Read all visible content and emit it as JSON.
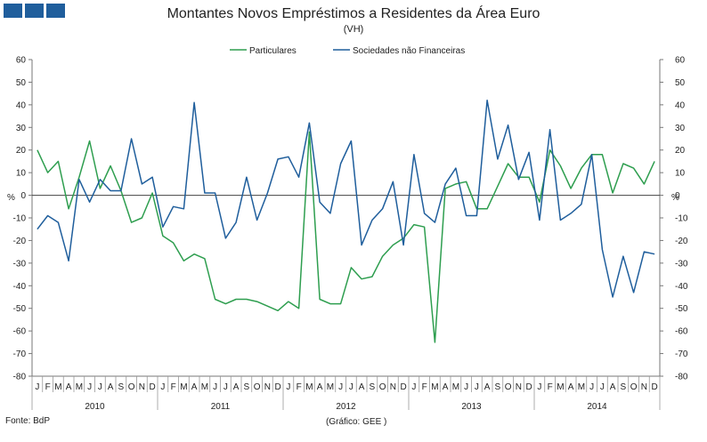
{
  "header": {
    "logo_icon": "bdp-logo-icon"
  },
  "chart_data": {
    "type": "line",
    "title": "Montantes Novos Empréstimos a Residentes da Área Euro",
    "subtitle": "(VH)",
    "ylabel_left": "%",
    "ylabel_right": "%",
    "ylim": [
      -80,
      60
    ],
    "yticks": [
      60,
      50,
      40,
      30,
      20,
      10,
      0,
      -10,
      -20,
      -30,
      -40,
      -50,
      -60,
      -70,
      -80
    ],
    "month_labels": [
      "J",
      "F",
      "M",
      "A",
      "M",
      "J",
      "J",
      "A",
      "S",
      "O",
      "N",
      "D"
    ],
    "years": [
      "2010",
      "2011",
      "2012",
      "2013",
      "2014"
    ],
    "legend_position": "top-center",
    "series": [
      {
        "name": "Particulares",
        "color": "#2e9e4f",
        "values": [
          20,
          10,
          15,
          -6,
          8,
          24,
          3,
          13,
          2,
          -12,
          -10,
          1,
          -18,
          -21,
          -29,
          -26,
          -28,
          -46,
          -48,
          -46,
          -46,
          -47,
          -49,
          -51,
          -47,
          -50,
          28,
          -46,
          -48,
          -48,
          -32,
          -37,
          -36,
          -27,
          -22,
          -19,
          -13,
          -14,
          -65,
          3,
          5,
          6,
          -6,
          -6,
          4,
          14,
          8,
          8,
          -3,
          20,
          13,
          3,
          12,
          18,
          18,
          1,
          14,
          12,
          5,
          15
        ]
      },
      {
        "name": "Sociedades não Financeiras",
        "color": "#1f5e9c",
        "values": [
          -15,
          -9,
          -12,
          -29,
          7,
          -3,
          7,
          2,
          2,
          25,
          5,
          8,
          -14,
          -5,
          -6,
          41,
          1,
          1,
          -19,
          -12,
          8,
          -11,
          1,
          16,
          17,
          8,
          32,
          -3,
          -8,
          14,
          24,
          -22,
          -11,
          -6,
          6,
          -22,
          18,
          -8,
          -12,
          5,
          12,
          -9,
          -9,
          42,
          16,
          31,
          7,
          19,
          -11,
          29,
          -11,
          -8,
          -4,
          18,
          -24,
          -45,
          -27,
          -43,
          -25,
          -26
        ]
      }
    ]
  },
  "footer": {
    "source": "Fonte: BdP",
    "credit": "(Gráfico: GEE )"
  }
}
